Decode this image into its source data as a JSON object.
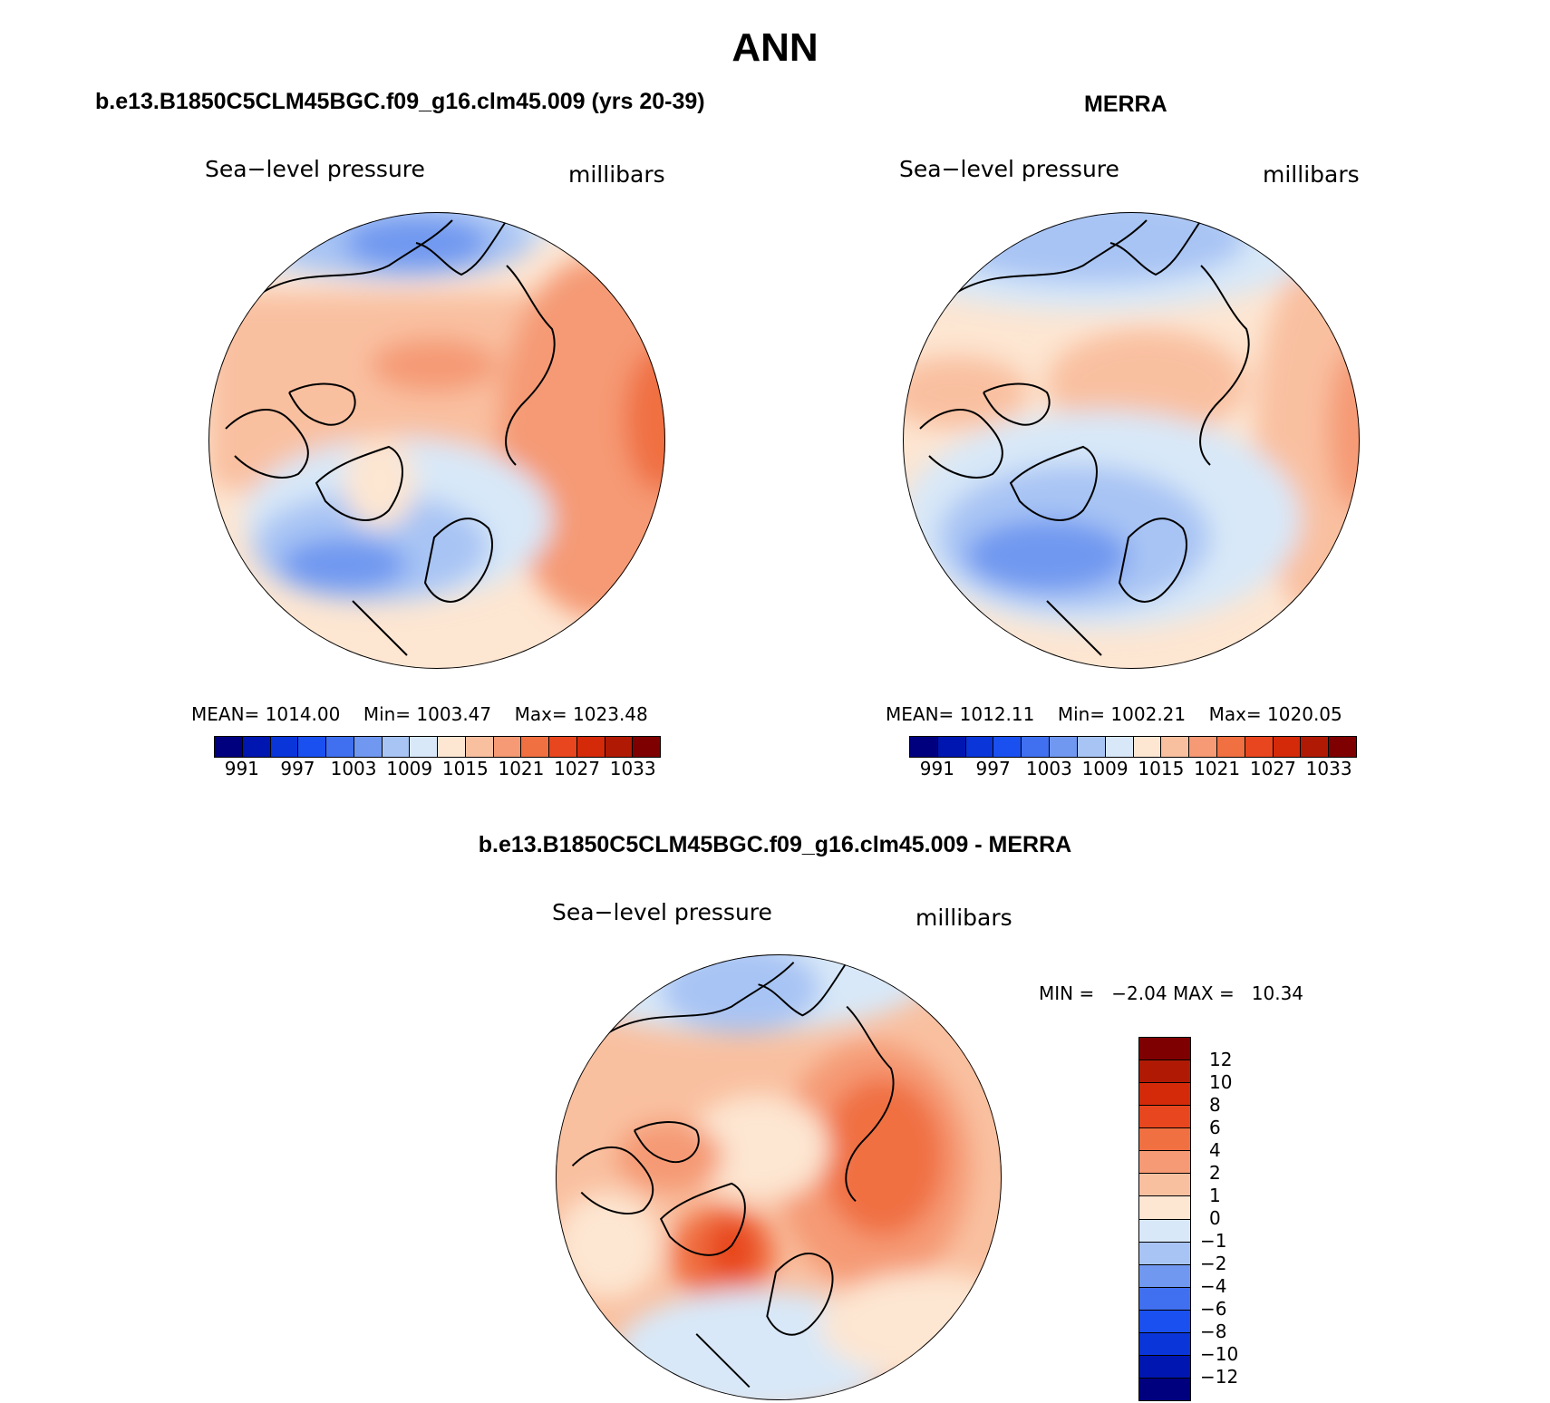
{
  "title": "ANN",
  "panels": [
    {
      "title": "b.e13.B1850C5CLM45BGC.f09_g16.clm45.009 (yrs 20-39)",
      "variable_label": "Sea−level pressure",
      "units_label": "millibars",
      "stats": {
        "mean_label": "MEAN=",
        "mean": "1014.00",
        "min_label": "Min=",
        "min": "1003.47",
        "max_label": "Max=",
        "max": "1023.48"
      }
    },
    {
      "title": "MERRA",
      "variable_label": "Sea−level pressure",
      "units_label": "millibars",
      "stats": {
        "mean_label": "MEAN=",
        "mean": "1012.11",
        "min_label": "Min=",
        "min": "1002.21",
        "max_label": "Max=",
        "max": "1020.05"
      }
    }
  ],
  "diff_panel": {
    "title": "b.e13.B1850C5CLM45BGC.f09_g16.clm45.009 - MERRA",
    "variable_label": "Sea−level pressure",
    "units_label": "millibars",
    "minmax_text": "MIN =   −2.04 MAX =   10.34"
  },
  "abs_colorbar": {
    "colors": [
      "#00007f",
      "#0016b0",
      "#0a35d9",
      "#1a50f0",
      "#4070f0",
      "#7098f0",
      "#a8c4f4",
      "#d8e8f8",
      "#fde6d2",
      "#f9c0a0",
      "#f59a74",
      "#f07042",
      "#e8461e",
      "#d42a0a",
      "#b01a05",
      "#7f0000"
    ],
    "tick_labels": [
      "991",
      "997",
      "1003",
      "1009",
      "1015",
      "1021",
      "1027",
      "1033"
    ]
  },
  "diff_colorbar": {
    "colors": [
      "#00007f",
      "#0016b0",
      "#0a35d9",
      "#1a50f0",
      "#4070f0",
      "#7098f0",
      "#a8c4f4",
      "#d8e8f8",
      "#fde6d2",
      "#f9c0a0",
      "#f59a74",
      "#f07042",
      "#e8461e",
      "#d42a0a",
      "#b01a05",
      "#7f0000"
    ],
    "tick_labels": [
      "−12",
      "−10",
      "−8",
      "−6",
      "−4",
      "−2",
      "−1",
      "0",
      "1",
      "2",
      "4",
      "6",
      "8",
      "10",
      "12"
    ]
  },
  "chart_data": [
    {
      "type": "heatmap",
      "projection": "north polar stereographic",
      "title": "b.e13.B1850C5CLM45BGC.f09_g16.clm45.009 (yrs 20-39)",
      "variable": "Sea−level pressure",
      "units": "millibars",
      "mean": 1014.0,
      "min": 1003.47,
      "max": 1023.48,
      "contour_levels": [
        991,
        994,
        997,
        1000,
        1003,
        1006,
        1009,
        1012,
        1015,
        1018,
        1021,
        1024,
        1027,
        1030,
        1033
      ]
    },
    {
      "type": "heatmap",
      "projection": "north polar stereographic",
      "title": "MERRA",
      "variable": "Sea−level pressure",
      "units": "millibars",
      "mean": 1012.11,
      "min": 1002.21,
      "max": 1020.05,
      "contour_levels": [
        991,
        994,
        997,
        1000,
        1003,
        1006,
        1009,
        1012,
        1015,
        1018,
        1021,
        1024,
        1027,
        1030,
        1033
      ]
    },
    {
      "type": "heatmap",
      "projection": "north polar stereographic",
      "title": "b.e13.B1850C5CLM45BGC.f09_g16.clm45.009 - MERRA",
      "variable": "Sea−level pressure",
      "units": "millibars",
      "min": -2.04,
      "max": 10.34,
      "contour_levels": [
        -12,
        -10,
        -8,
        -6,
        -4,
        -2,
        -1,
        0,
        1,
        2,
        4,
        6,
        8,
        10,
        12
      ]
    }
  ]
}
